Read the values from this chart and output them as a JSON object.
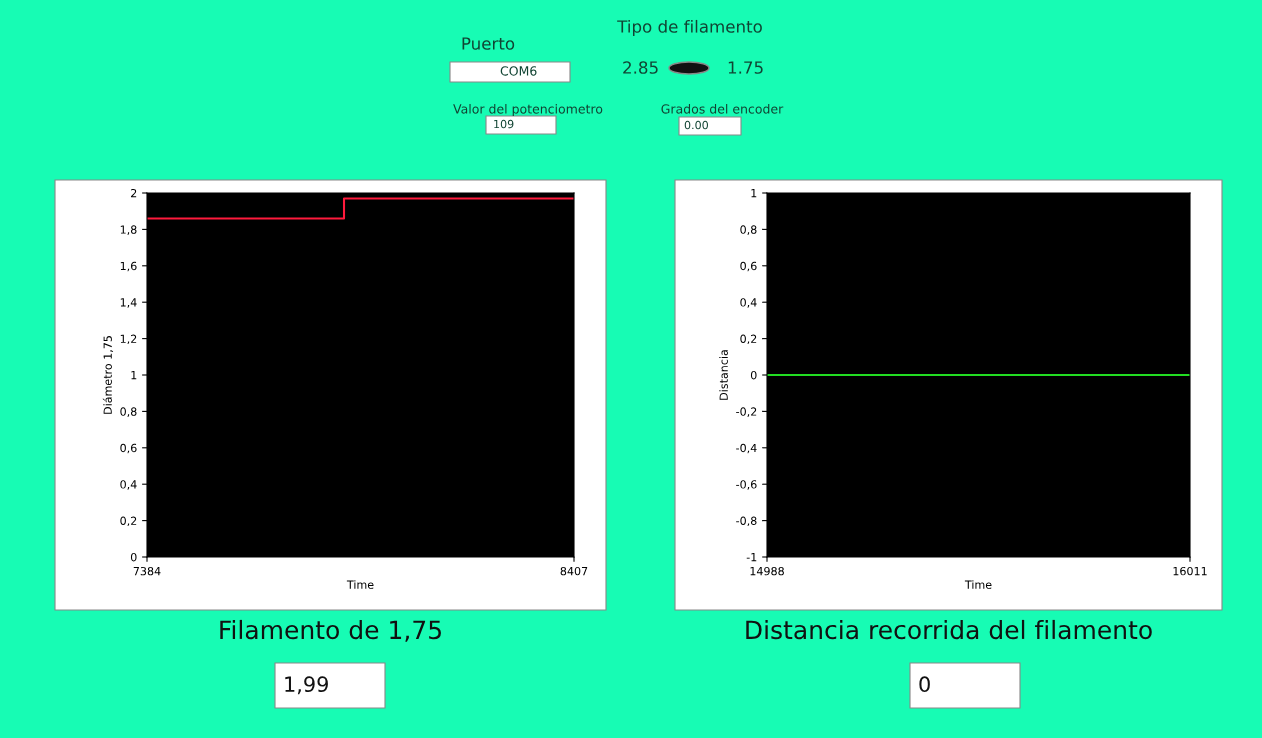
{
  "chart_data": [
    {
      "type": "other",
      "annotations": [
        "Puerto",
        "COM6",
        "Tipo de filamento",
        "2.85",
        "1.75",
        "Valor del potenciometro",
        "109",
        "Grados del encoder",
        "0.00"
      ]
    },
    {
      "type": "line",
      "xlabel": "Time",
      "ylabel": "Diámetro 1,75",
      "xlim": [
        7384,
        8407
      ],
      "xticks": [
        7384,
        8407
      ],
      "ylim": [
        0,
        2
      ],
      "yticks": [
        0,
        {
          "value": 0.2,
          "label": "0,2"
        },
        {
          "value": 0.4,
          "label": "0,4"
        },
        {
          "value": 0.6,
          "label": "0,6"
        },
        {
          "value": 0.8,
          "label": "0,8"
        },
        1,
        {
          "value": 1.2,
          "label": "1,2"
        },
        {
          "value": 1.4,
          "label": "1,4"
        },
        {
          "value": 1.6,
          "label": "1,6"
        },
        {
          "value": 1.8,
          "label": "1,8"
        },
        2
      ],
      "series": [
        {
          "color": "#ff1a3c",
          "x": [
            7384,
            7856,
            7856,
            8407
          ],
          "values": [
            1.86,
            1.86,
            1.97,
            1.97
          ]
        }
      ],
      "annotations": [
        "Filamento de 1,75",
        "1,99"
      ]
    },
    {
      "type": "line",
      "xlabel": "Time",
      "ylabel": "Distancia",
      "xlim": [
        14988,
        16011
      ],
      "xticks": [
        14988,
        16011
      ],
      "ylim": [
        -1,
        1
      ],
      "yticks": [
        -1,
        {
          "value": -0.8,
          "label": "-0,8"
        },
        {
          "value": -0.6,
          "label": "-0,6"
        },
        {
          "value": -0.4,
          "label": "-0,4"
        },
        {
          "value": -0.2,
          "label": "-0,2"
        },
        0,
        {
          "value": 0.2,
          "label": "0,2"
        },
        {
          "value": 0.4,
          "label": "0,4"
        },
        {
          "value": 0.6,
          "label": "0,6"
        },
        {
          "value": 0.8,
          "label": "0,8"
        },
        1
      ],
      "series": [
        {
          "color": "#22dd22",
          "x": [
            14988,
            16011
          ],
          "values": [
            0,
            0
          ]
        }
      ],
      "annotations": [
        "Distancia recorrida del filamento",
        "0"
      ]
    }
  ]
}
